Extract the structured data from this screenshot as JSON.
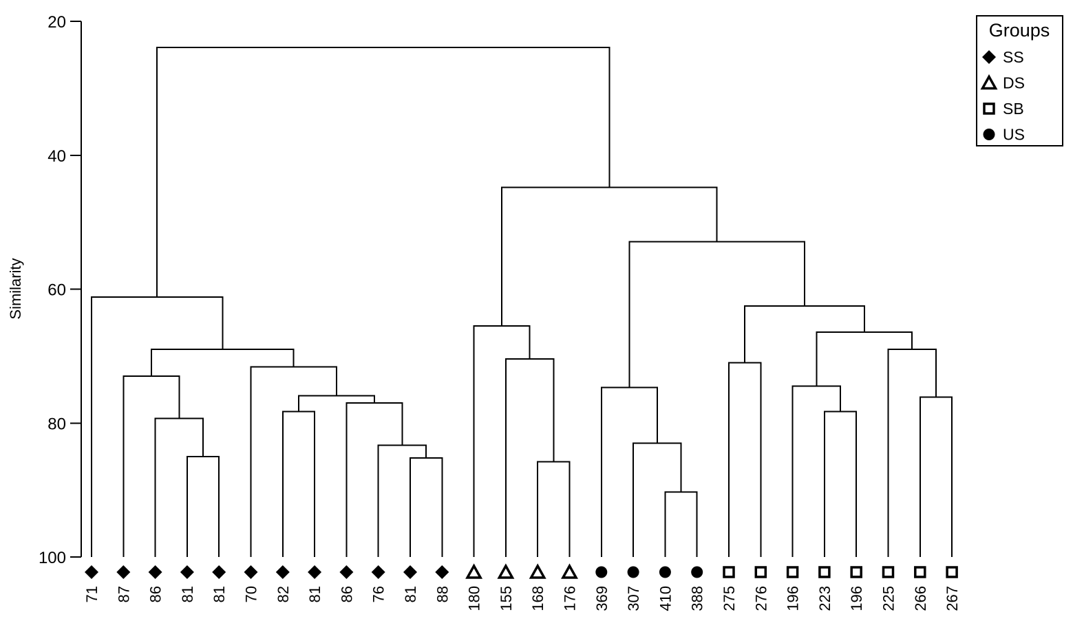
{
  "chart_data": {
    "type": "dendrogram",
    "ylabel": "Similarity",
    "ylim": [
      20,
      100
    ],
    "yticks": [
      20,
      40,
      60,
      80,
      100
    ],
    "y_inverted": true,
    "legend": {
      "title": "Groups",
      "placement": "top-right",
      "entries": [
        {
          "label": "SS",
          "marker": "filled-diamond"
        },
        {
          "label": "DS",
          "marker": "open-triangle"
        },
        {
          "label": "SB",
          "marker": "open-square"
        },
        {
          "label": "US",
          "marker": "filled-circle"
        }
      ]
    },
    "leaves": [
      {
        "label": "71",
        "group": "SS"
      },
      {
        "label": "87",
        "group": "SS"
      },
      {
        "label": "86",
        "group": "SS"
      },
      {
        "label": "81",
        "group": "SS"
      },
      {
        "label": "81",
        "group": "SS"
      },
      {
        "label": "70",
        "group": "SS"
      },
      {
        "label": "82",
        "group": "SS"
      },
      {
        "label": "81",
        "group": "SS"
      },
      {
        "label": "86",
        "group": "SS"
      },
      {
        "label": "76",
        "group": "SS"
      },
      {
        "label": "81",
        "group": "SS"
      },
      {
        "label": "88",
        "group": "SS"
      },
      {
        "label": "180",
        "group": "DS"
      },
      {
        "label": "155",
        "group": "DS"
      },
      {
        "label": "168",
        "group": "DS"
      },
      {
        "label": "176",
        "group": "DS"
      },
      {
        "label": "369",
        "group": "US"
      },
      {
        "label": "307",
        "group": "US"
      },
      {
        "label": "410",
        "group": "US"
      },
      {
        "label": "388",
        "group": "US"
      },
      {
        "label": "275",
        "group": "SB"
      },
      {
        "label": "276",
        "group": "SB"
      },
      {
        "label": "196",
        "group": "SB"
      },
      {
        "label": "223",
        "group": "SB"
      },
      {
        "label": "196",
        "group": "SB"
      },
      {
        "label": "225",
        "group": "SB"
      },
      {
        "label": "266",
        "group": "SB"
      },
      {
        "label": "267",
        "group": "SB"
      }
    ],
    "merges": [
      {
        "a": 3,
        "b": 4,
        "similarity": 85.0
      },
      {
        "a": 2,
        "b": -1,
        "similarity": 79.3
      },
      {
        "a": 1,
        "b": -2,
        "similarity": 73.0
      },
      {
        "a": 6,
        "b": 7,
        "similarity": 78.3
      },
      {
        "a": 10,
        "b": 11,
        "similarity": 85.2
      },
      {
        "a": 9,
        "b": -5,
        "similarity": 83.3
      },
      {
        "a": 8,
        "b": -6,
        "similarity": 77.0
      },
      {
        "a": -4,
        "b": -7,
        "similarity": 75.9
      },
      {
        "a": 5,
        "b": -8,
        "similarity": 71.6
      },
      {
        "a": -3,
        "b": -9,
        "similarity": 69.0
      },
      {
        "a": 0,
        "b": -10,
        "similarity": 61.2
      },
      {
        "a": 14,
        "b": 15,
        "similarity": 85.8
      },
      {
        "a": 13,
        "b": -12,
        "similarity": 70.4
      },
      {
        "a": 12,
        "b": -13,
        "similarity": 65.5
      },
      {
        "a": 18,
        "b": 19,
        "similarity": 90.3
      },
      {
        "a": 17,
        "b": -15,
        "similarity": 83.0
      },
      {
        "a": 16,
        "b": -16,
        "similarity": 74.7
      },
      {
        "a": 20,
        "b": 21,
        "similarity": 71.0
      },
      {
        "a": 23,
        "b": 24,
        "similarity": 78.3
      },
      {
        "a": 22,
        "b": -19,
        "similarity": 74.5
      },
      {
        "a": 26,
        "b": 27,
        "similarity": 76.1
      },
      {
        "a": 25,
        "b": -21,
        "similarity": 69.0
      },
      {
        "a": -20,
        "b": -22,
        "similarity": 66.4
      },
      {
        "a": -18,
        "b": -23,
        "similarity": 62.5
      },
      {
        "a": -17,
        "b": -24,
        "similarity": 52.9
      },
      {
        "a": -14,
        "b": -25,
        "similarity": 44.8
      },
      {
        "a": -11,
        "b": -26,
        "similarity": 23.9
      }
    ]
  }
}
